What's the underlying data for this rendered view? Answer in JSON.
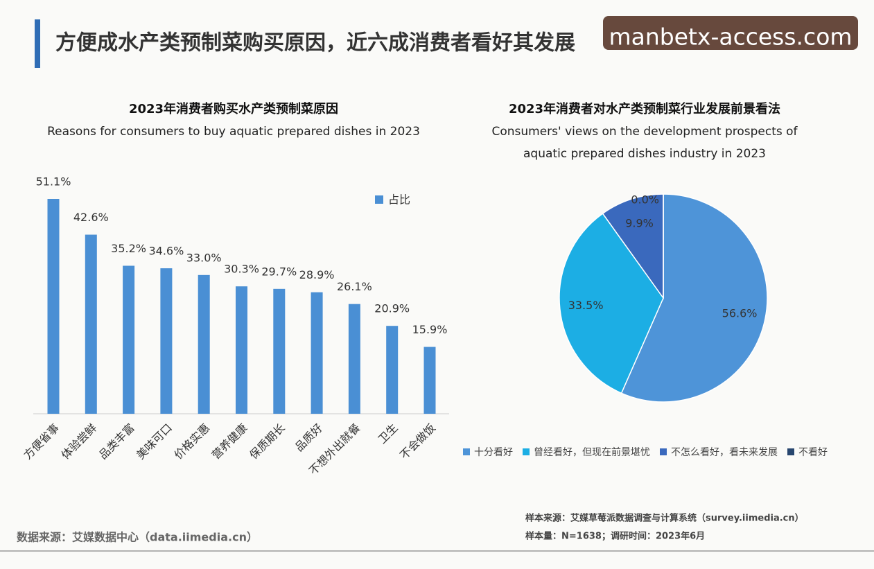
{
  "header": {
    "title": "方便成水产类预制菜购买原因，近六成消费者看好其发展",
    "watermark": "manbetx-access.com"
  },
  "chart_data": [
    {
      "type": "bar",
      "title": "2023年消费者购买水产类预制菜原因",
      "subtitle": [
        "Reasons for consumers to buy aquatic prepared dishes in 2023"
      ],
      "categories": [
        "方便省事",
        "体验尝鲜",
        "品类丰富",
        "美味可口",
        "价格实惠",
        "营养健康",
        "保质期长",
        "品质好",
        "不想外出就餐",
        "卫生",
        "不会做饭"
      ],
      "series": [
        {
          "name": "占比",
          "color": "#4a8fd4",
          "values": [
            51.1,
            42.6,
            35.2,
            34.6,
            33.0,
            30.3,
            29.7,
            28.9,
            26.1,
            20.9,
            15.9
          ],
          "value_labels": [
            "51.1%",
            "42.6%",
            "35.2%",
            "34.6%",
            "33.0%",
            "30.3%",
            "29.7%",
            "28.9%",
            "26.1%",
            "20.9%",
            "15.9%"
          ]
        }
      ]
    },
    {
      "type": "pie",
      "title": "2023年消费者对水产类预制菜行业发展前景看法",
      "subtitle": [
        "Consumers' views on the development prospects of",
        "aquatic prepared dishes industry in 2023"
      ],
      "categories": [
        "十分看好",
        "曾经看好，但现在前景堪忧",
        "不怎么看好，看未来发展",
        "不看好"
      ],
      "values": [
        56.6,
        33.5,
        9.9,
        0.0
      ],
      "value_labels": [
        "56.6%",
        "33.5%",
        "9.9%",
        "0.0%"
      ],
      "colors": [
        "#4e94d8",
        "#1caee4",
        "#3a69bd",
        "#27466f"
      ]
    }
  ],
  "footer": {
    "source": "数据来源：艾媒数据中心（data.iimedia.cn）",
    "notes": [
      "样本来源：艾媒草莓派数据调查与计算系统（survey.iimedia.cn）",
      "样本量：N=1638；调研时间：2023年6月"
    ]
  }
}
